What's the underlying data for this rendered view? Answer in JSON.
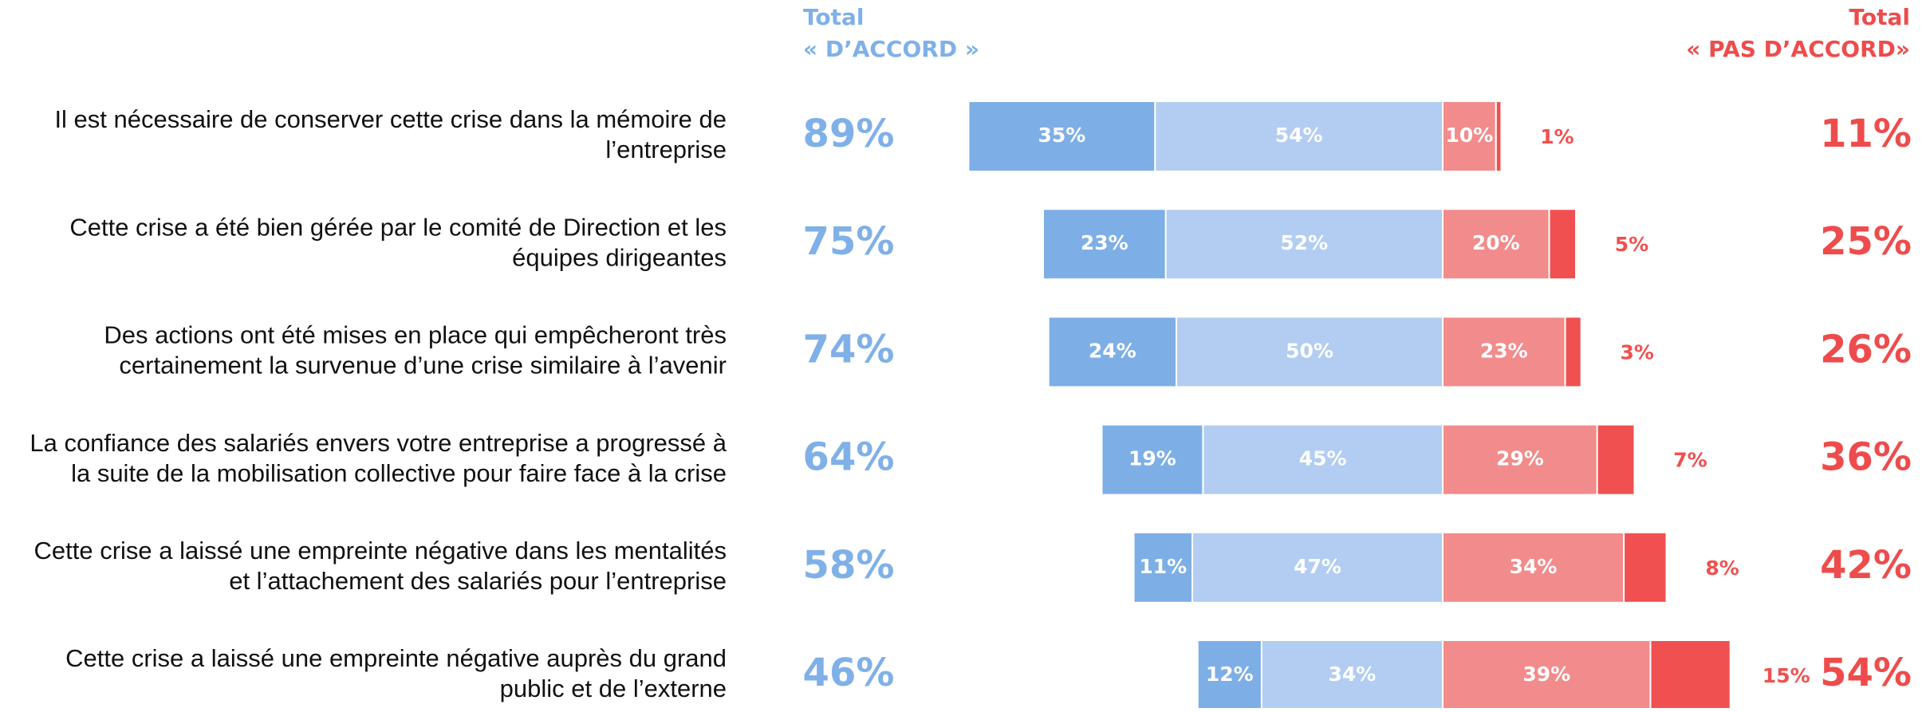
{
  "chart_data": {
    "type": "diverging_bar",
    "agree_header": [
      "Total",
      "« D’ACCORD »"
    ],
    "disagree_header": [
      "Total",
      "« PAS D’ACCORD»"
    ],
    "categories": [
      [
        "Il est nécessaire de conserver cette crise dans la mémoire de",
        "l’entreprise"
      ],
      [
        "Cette crise a été bien gérée par le comité de Direction et les",
        "équipes dirigeantes"
      ],
      [
        "Des actions ont été mises en place qui empêcheront très",
        "certainement la survenue d’une crise similaire à l’avenir"
      ],
      [
        "La confiance des salariés envers votre entreprise a progressé à",
        "la suite de la mobilisation collective pour faire face à la crise"
      ],
      [
        "Cette crise a laissé une empreinte négative dans les mentalités",
        "et l’attachement des salariés pour l’entreprise"
      ],
      [
        "Cette crise a laissé une empreinte négative auprès du grand",
        "public et de l’externe"
      ]
    ],
    "series": [
      {
        "color": "#7eaee6",
        "values": [
          35,
          23,
          24,
          19,
          11,
          12
        ],
        "value_labels": [
          "35%",
          "23%",
          "24%",
          "19%",
          "11%",
          "12%"
        ]
      },
      {
        "color": "#b2cdf1",
        "values": [
          54,
          52,
          50,
          45,
          47,
          34
        ],
        "value_labels": [
          "54%",
          "52%",
          "50%",
          "45%",
          "47%",
          "34%"
        ]
      },
      {
        "color": "#f28b8b",
        "values": [
          10,
          20,
          23,
          29,
          34,
          39
        ],
        "value_labels": [
          "10%",
          "20%",
          "23%",
          "29%",
          "34%",
          "39%"
        ]
      },
      {
        "color": "#f05050",
        "values": [
          1,
          5,
          3,
          7,
          8,
          15
        ],
        "value_labels": [
          "1%",
          "5%",
          "3%",
          "7%",
          "8%",
          "15%"
        ]
      }
    ],
    "agree_totals": [
      89,
      75,
      74,
      64,
      58,
      46
    ],
    "agree_total_labels": [
      "89%",
      "75%",
      "74%",
      "64%",
      "58%",
      "46%"
    ],
    "agree_color": "#7fb0e8",
    "disagree_totals": [
      11,
      25,
      26,
      36,
      42,
      54
    ],
    "disagree_total_labels": [
      "11%",
      "25%",
      "26%",
      "36%",
      "42%",
      "54%"
    ],
    "disagree_color": "#ee4c4c"
  }
}
